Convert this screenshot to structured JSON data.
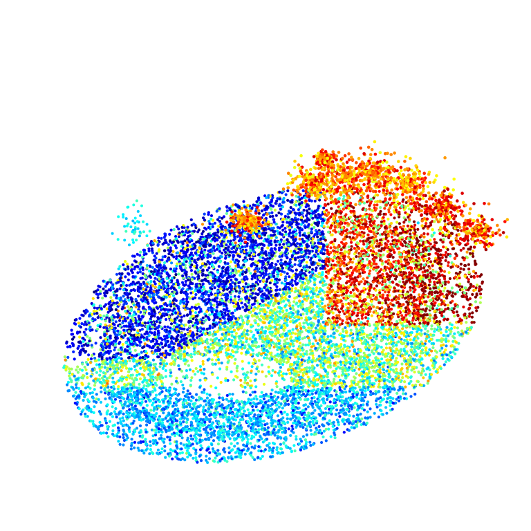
{
  "image": {
    "kind": "point-cloud-render",
    "background_color": "#ffffff",
    "colormap": "jet",
    "palette": [
      "#0000ff",
      "#0a3cf0",
      "#1478ff",
      "#00b4ff",
      "#00e6e6",
      "#32f0b4",
      "#96f064",
      "#c8f032",
      "#ffff00",
      "#ffc800",
      "#ff9600",
      "#ff5a00",
      "#ff2800"
    ]
  }
}
